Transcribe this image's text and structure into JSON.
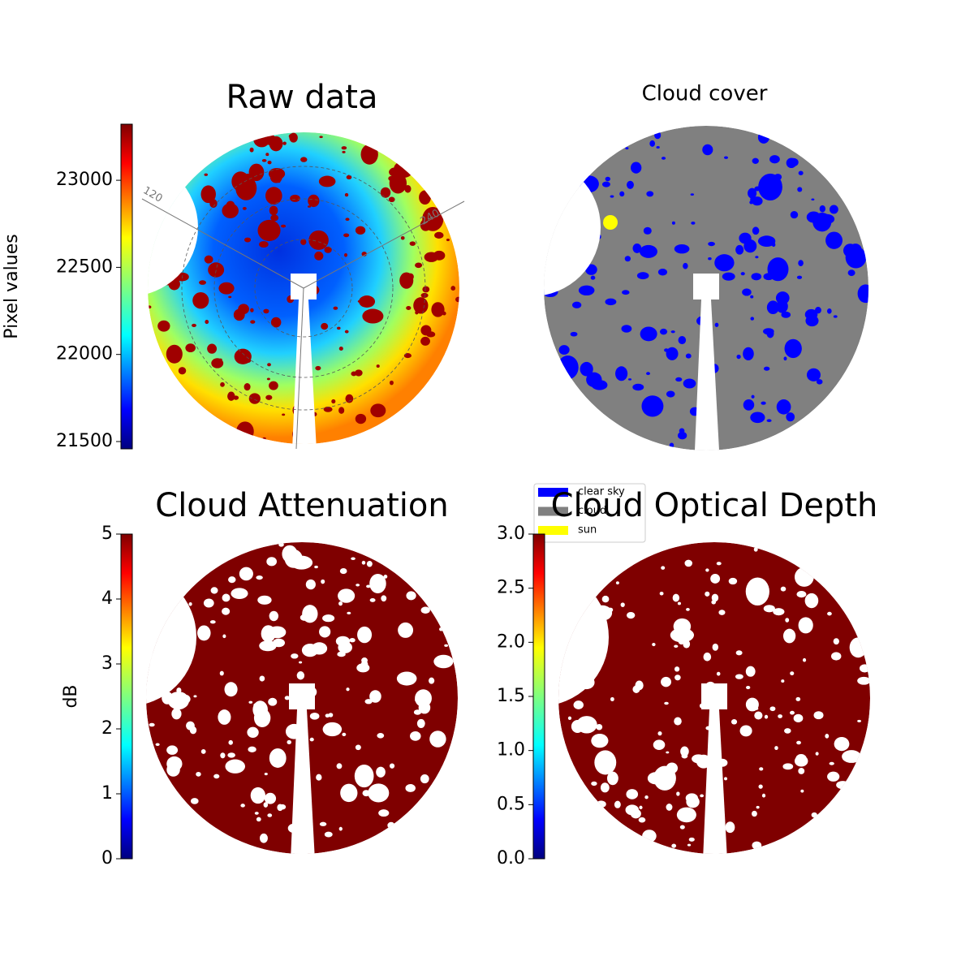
{
  "chart_data": [
    {
      "type": "image",
      "title": "Raw data",
      "colorbar": {
        "label": "Pixel values",
        "ylim": [
          21458,
          23322
        ],
        "yticks": [
          21500,
          22000,
          22500,
          23000
        ]
      },
      "annotations": [
        "120",
        "240"
      ]
    },
    {
      "type": "image",
      "title": "Cloud cover",
      "legend": [
        {
          "name": "clear sky",
          "color": "#0000ff"
        },
        {
          "name": "cloud",
          "color": "#808080"
        },
        {
          "name": "sun",
          "color": "#ffff00"
        }
      ]
    },
    {
      "type": "image",
      "title": "Cloud Attenuation",
      "colorbar": {
        "label": "dB",
        "ylim": [
          0,
          5
        ],
        "yticks": [
          0,
          1,
          2,
          3,
          4,
          5
        ]
      }
    },
    {
      "type": "image",
      "title": "Cloud Optical Depth",
      "colorbar": {
        "ylim": [
          0,
          3
        ],
        "yticks": [
          {
            "value": 0,
            "label": "0.0"
          },
          {
            "value": 0.5,
            "label": "0.5"
          },
          {
            "value": 1,
            "label": "1.0"
          },
          {
            "value": 1.5,
            "label": "1.5"
          },
          {
            "value": 2,
            "label": "2.0"
          },
          {
            "value": 2.5,
            "label": "2.5"
          },
          {
            "value": 3,
            "label": "3.0"
          }
        ]
      }
    }
  ]
}
